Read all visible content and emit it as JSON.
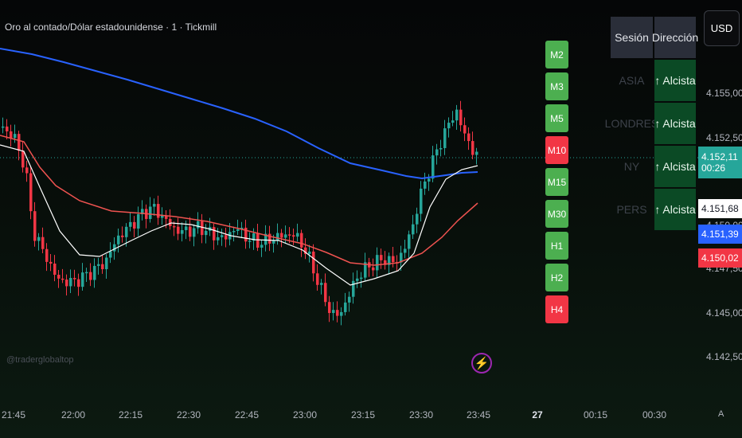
{
  "title": "Oro al contado/Dólar estadounidense · 1 · Tickmill",
  "watermark": "@traderglobaltop",
  "currency_button": "USD",
  "timeframes": [
    {
      "label": "M2",
      "status": "bull"
    },
    {
      "label": "M3",
      "status": "bull"
    },
    {
      "label": "M5",
      "status": "bull"
    },
    {
      "label": "M10",
      "status": "bear"
    },
    {
      "label": "M15",
      "status": "bull"
    },
    {
      "label": "M30",
      "status": "bull"
    },
    {
      "label": "H1",
      "status": "bull"
    },
    {
      "label": "H2",
      "status": "bull"
    },
    {
      "label": "H4",
      "status": "bear"
    }
  ],
  "session_table": {
    "headers": [
      "Sesión",
      "Dirección"
    ],
    "rows": [
      {
        "session": "ASIA",
        "direction": "↑ Alcista"
      },
      {
        "session": "LONDRES",
        "direction": "↑ Alcista"
      },
      {
        "session": "NY",
        "direction": "↑ Alcista"
      },
      {
        "session": "PERS",
        "direction": "↑ Alcista"
      }
    ]
  },
  "price_axis": {
    "labels": [
      "4.155,00",
      "4.152,50",
      "4.150,00",
      "4.147,50",
      "4.145,00",
      "4.142,50"
    ],
    "current_price": "4.152,11",
    "countdown": "00:26",
    "tags": [
      {
        "value": "4.151,68",
        "color": "#ffffff",
        "text_color": "#131722"
      },
      {
        "value": "4.151,39",
        "color": "#2962ff",
        "text_color": "#ffffff"
      },
      {
        "value": "4.150,02",
        "color": "#f23645",
        "text_color": "#ffffff"
      }
    ]
  },
  "time_axis": {
    "labels": [
      "21:45",
      "22:00",
      "22:15",
      "22:30",
      "22:45",
      "23:00",
      "23:15",
      "23:30",
      "23:45",
      "27",
      "00:15",
      "00:30"
    ],
    "auto_label": "A"
  },
  "colors": {
    "bull": "#26a69a",
    "bear": "#f23645",
    "ma_blue": "#2962ff",
    "ma_red": "#ef5350",
    "ma_white": "#ffffff"
  }
}
